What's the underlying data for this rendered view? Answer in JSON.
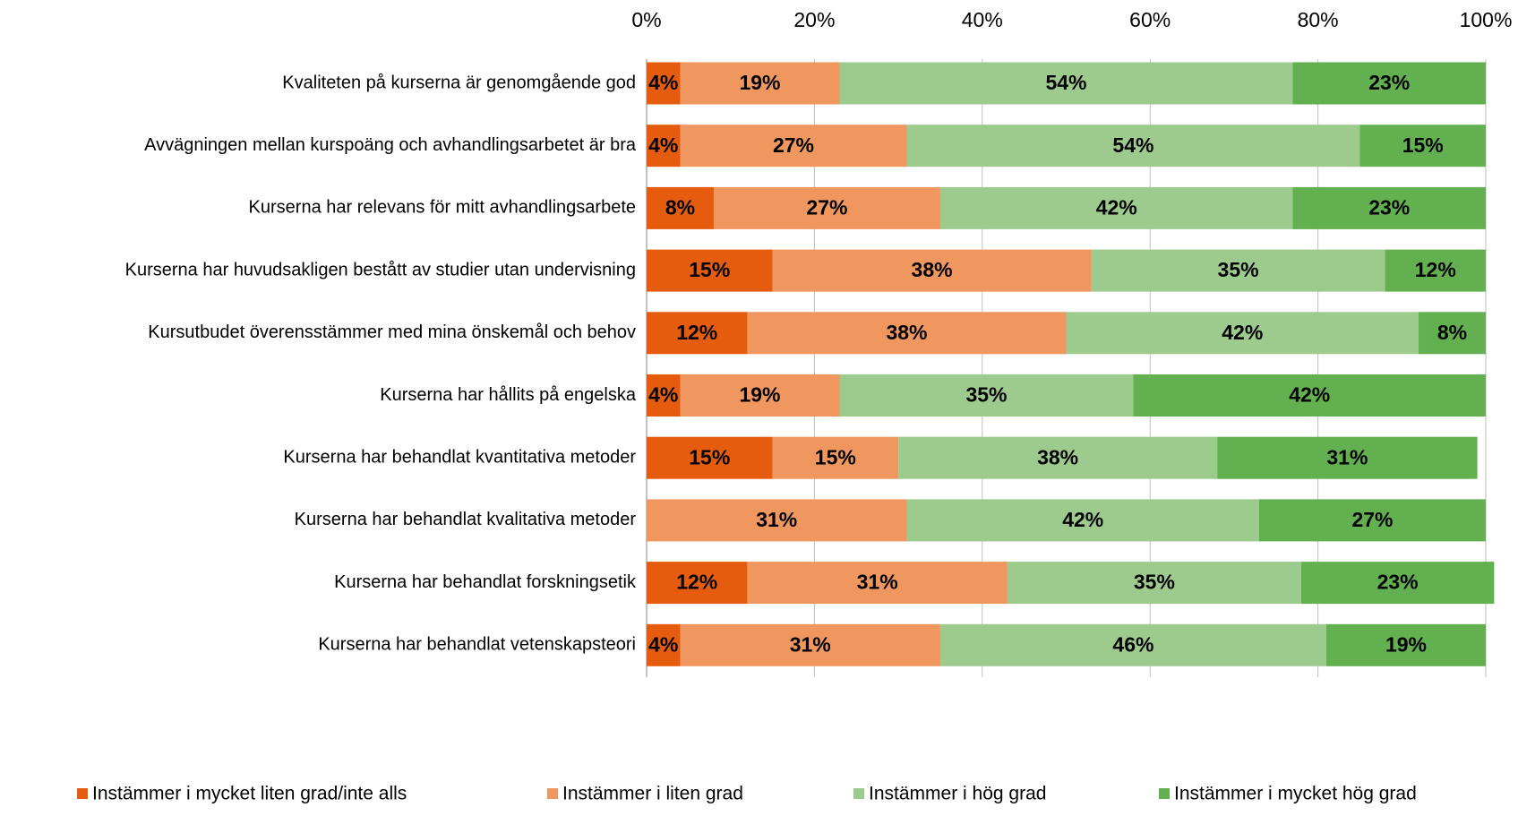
{
  "chart_data": {
    "type": "stacked-barh",
    "categories": [
      "Kvaliteten på kurserna är genomgående god",
      "Avvägningen mellan kurspoäng och avhandlingsarbetet är bra",
      "Kurserna har relevans för mitt avhandlingsarbete",
      "Kurserna har huvudsakligen bestått av studier utan undervisning",
      "Kursutbudet överensstämmer med mina önskemål och behov",
      "Kurserna har hållits på engelska",
      "Kurserna har behandlat kvantitativa metoder",
      "Kurserna har behandlat kvalitativa metoder",
      "Kurserna har behandlat forskningsetik",
      "Kurserna har behandlat vetenskapsteori"
    ],
    "series": [
      {
        "name": "Instämmer i mycket liten grad/inte alls",
        "color": "#e65c0f",
        "values": [
          4,
          4,
          8,
          15,
          12,
          4,
          15,
          0,
          12,
          4
        ],
        "value_labels": [
          "4%",
          "4%",
          "8%",
          "15%",
          "12%",
          "4%",
          "15%",
          null,
          "12%",
          "4%"
        ]
      },
      {
        "name": "Instämmer i liten grad",
        "color": "#f0975f",
        "values": [
          19,
          27,
          27,
          38,
          38,
          19,
          15,
          31,
          31,
          31
        ],
        "value_labels": [
          "19%",
          "27%",
          "27%",
          "38%",
          "38%",
          "19%",
          "15%",
          "31%",
          "31%",
          "31%"
        ]
      },
      {
        "name": "Instämmer i hög grad",
        "color": "#9dcb8e",
        "values": [
          54,
          54,
          42,
          35,
          42,
          35,
          38,
          42,
          35,
          46
        ],
        "value_labels": [
          "54%",
          "54%",
          "42%",
          "35%",
          "42%",
          "35%",
          "38%",
          "42%",
          "35%",
          "46%"
        ]
      },
      {
        "name": "Instämmer i mycket hög grad",
        "color": "#62b04f",
        "values": [
          23,
          15,
          23,
          12,
          8,
          42,
          31,
          27,
          23,
          19
        ],
        "value_labels": [
          "23%",
          "15%",
          "23%",
          "12%",
          "8%",
          "42%",
          "31%",
          "27%",
          "23%",
          "19%"
        ]
      }
    ],
    "xlim": [
      0,
      100
    ],
    "xticks": [
      {
        "value": 0,
        "label": "0%"
      },
      {
        "value": 20,
        "label": "20%"
      },
      {
        "value": 40,
        "label": "40%"
      },
      {
        "value": 60,
        "label": "60%"
      },
      {
        "value": 80,
        "label": "80%"
      },
      {
        "value": 100,
        "label": "100%"
      }
    ],
    "grid": true,
    "legend": "bottom"
  }
}
